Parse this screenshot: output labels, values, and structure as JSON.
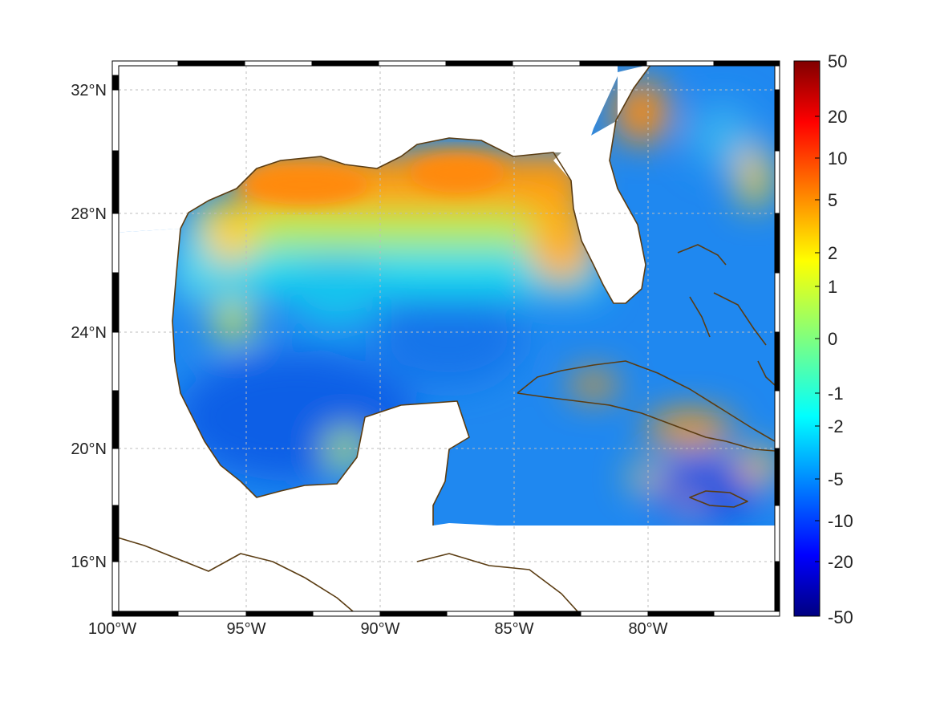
{
  "map": {
    "lon_ticks": [
      "100°W",
      "95°W",
      "90°W",
      "85°W",
      "80°W"
    ],
    "lat_ticks": [
      "32°N",
      "28°N",
      "24°N",
      "20°N",
      "16°N"
    ],
    "lon_range": [
      -100,
      -75
    ],
    "lat_range": [
      14.3,
      33
    ],
    "grid": true,
    "coastline_color": "#5a3c12",
    "land_color": "#ffffff"
  },
  "colorbar": {
    "labels": [
      "50",
      "20",
      "10",
      "5",
      "2",
      "1",
      "0",
      "-1",
      "-2",
      "-5",
      "-10",
      "-20",
      "-50"
    ],
    "colormap": "jet",
    "min": -50,
    "max": 50
  }
}
